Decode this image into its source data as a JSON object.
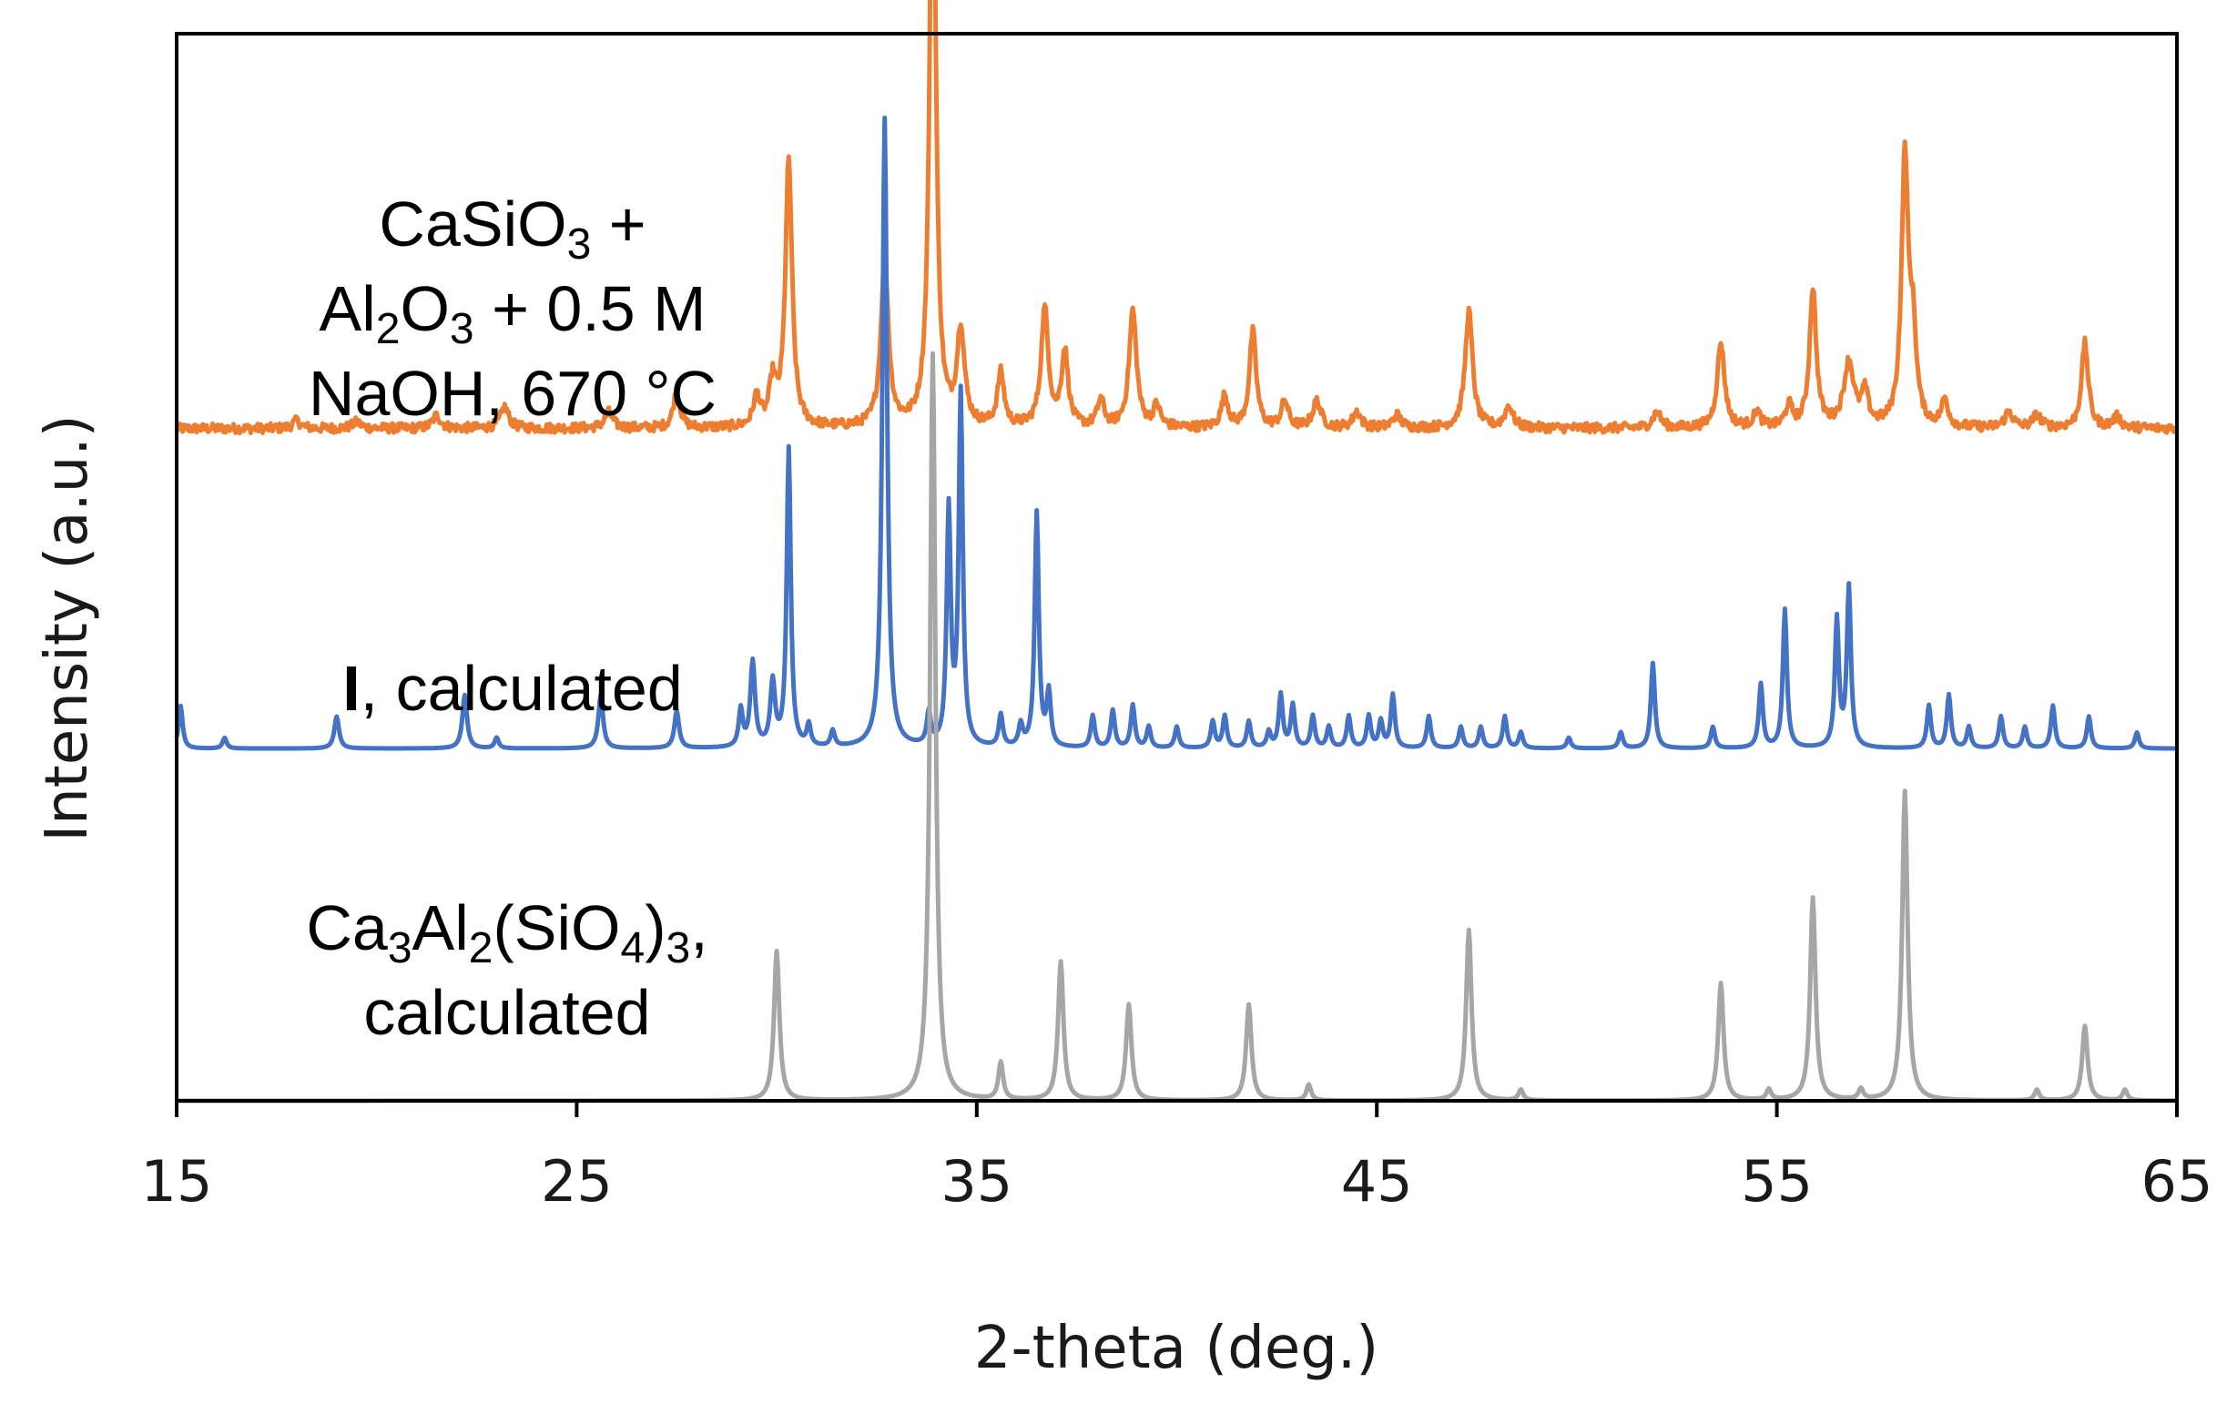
{
  "chart_data": {
    "type": "line",
    "title": "",
    "xlabel": "2-theta (deg.)",
    "ylabel": "Intensity (a.u.)",
    "xlim": [
      15,
      65
    ],
    "ylim": [
      0,
      100
    ],
    "x_ticks": [
      15,
      25,
      35,
      45,
      55,
      65
    ],
    "grid": false,
    "legend": "none (series labelled inline on left)",
    "series": [
      {
        "name": "CaSiO3 + Al2O3 + 0.5 M NaOH, 670 °C",
        "label_lines": [
          [
            {
              "t": "CaSiO"
            },
            {
              "t": "3",
              "sub": true
            },
            {
              "t": " +"
            }
          ],
          [
            {
              "t": "Al"
            },
            {
              "t": "2",
              "sub": true
            },
            {
              "t": "O"
            },
            {
              "t": "3",
              "sub": true
            },
            {
              "t": " + 0.5 M"
            }
          ],
          [
            {
              "t": "NaOH, 670 °C"
            }
          ]
        ],
        "color": "#ED7D31",
        "baseline": 63,
        "noise": 0.9,
        "peaks": [
          [
            18.0,
            0.7,
            0.12
          ],
          [
            19.5,
            0.6,
            0.12
          ],
          [
            21.5,
            1.2,
            0.12
          ],
          [
            23.2,
            2.0,
            0.12
          ],
          [
            25.8,
            1.5,
            0.12
          ],
          [
            27.5,
            3.5,
            0.1
          ],
          [
            29.5,
            2.8,
            0.1
          ],
          [
            29.9,
            4.0,
            0.1
          ],
          [
            30.3,
            25,
            0.1
          ],
          [
            32.7,
            16,
            0.11
          ],
          [
            33.9,
            61,
            0.09
          ],
          [
            34.6,
            9,
            0.11
          ],
          [
            35.6,
            5,
            0.1
          ],
          [
            36.7,
            11,
            0.11
          ],
          [
            37.2,
            7,
            0.1
          ],
          [
            38.1,
            2.5,
            0.1
          ],
          [
            38.9,
            11,
            0.11
          ],
          [
            39.5,
            2.0,
            0.1
          ],
          [
            41.2,
            3.0,
            0.1
          ],
          [
            41.9,
            9,
            0.1
          ],
          [
            42.7,
            2.5,
            0.1
          ],
          [
            43.5,
            2.5,
            0.12
          ],
          [
            44.5,
            1.5,
            0.12
          ],
          [
            45.5,
            1.2,
            0.12
          ],
          [
            47.3,
            11,
            0.11
          ],
          [
            48.3,
            2.0,
            0.12
          ],
          [
            52.0,
            1.5,
            0.12
          ],
          [
            53.6,
            8,
            0.11
          ],
          [
            54.5,
            1.5,
            0.1
          ],
          [
            55.3,
            2.0,
            0.1
          ],
          [
            55.9,
            13,
            0.1
          ],
          [
            56.8,
            6,
            0.15
          ],
          [
            57.2,
            3,
            0.1
          ],
          [
            58.2,
            25,
            0.1
          ],
          [
            58.4,
            8,
            0.1
          ],
          [
            59.2,
            2.5,
            0.1
          ],
          [
            60.8,
            1.5,
            0.12
          ],
          [
            61.5,
            1.2,
            0.12
          ],
          [
            62.7,
            8,
            0.1
          ],
          [
            63.5,
            1.0,
            0.12
          ]
        ]
      },
      {
        "name": "I, calculated",
        "label_lines": [
          [
            {
              "t": "I",
              "bold": true
            },
            {
              "t": ", calculated"
            }
          ]
        ],
        "color": "#4472C4",
        "baseline": 33,
        "noise": 0,
        "peaks": [
          [
            15.1,
            4,
            0.06
          ],
          [
            16.2,
            1.0,
            0.06
          ],
          [
            19.0,
            3.0,
            0.07
          ],
          [
            22.2,
            5,
            0.07
          ],
          [
            23.0,
            1.0,
            0.06
          ],
          [
            25.6,
            5,
            0.07
          ],
          [
            27.5,
            3.5,
            0.07
          ],
          [
            29.1,
            3.5,
            0.06
          ],
          [
            29.4,
            8,
            0.07
          ],
          [
            29.9,
            6,
            0.07
          ],
          [
            30.3,
            28,
            0.06
          ],
          [
            30.8,
            2.0,
            0.06
          ],
          [
            31.4,
            1.5,
            0.06
          ],
          [
            32.7,
            59,
            0.07
          ],
          [
            33.8,
            3.0,
            0.06
          ],
          [
            34.3,
            22,
            0.06
          ],
          [
            34.6,
            33,
            0.06
          ],
          [
            35.6,
            3.0,
            0.06
          ],
          [
            36.1,
            2.0,
            0.06
          ],
          [
            36.5,
            22,
            0.06
          ],
          [
            36.8,
            5,
            0.06
          ],
          [
            37.9,
            3.0,
            0.06
          ],
          [
            38.4,
            3.5,
            0.06
          ],
          [
            38.9,
            4.0,
            0.06
          ],
          [
            39.3,
            2.0,
            0.06
          ],
          [
            40.0,
            2.0,
            0.06
          ],
          [
            40.9,
            2.5,
            0.06
          ],
          [
            41.2,
            3.0,
            0.06
          ],
          [
            41.8,
            2.5,
            0.06
          ],
          [
            42.3,
            1.5,
            0.06
          ],
          [
            42.6,
            5,
            0.06
          ],
          [
            42.9,
            4.0,
            0.06
          ],
          [
            43.4,
            3.0,
            0.06
          ],
          [
            43.8,
            2.0,
            0.06
          ],
          [
            44.3,
            3.0,
            0.06
          ],
          [
            44.8,
            3.0,
            0.06
          ],
          [
            45.1,
            2.5,
            0.06
          ],
          [
            45.4,
            5,
            0.06
          ],
          [
            46.3,
            3.0,
            0.06
          ],
          [
            47.1,
            2.0,
            0.06
          ],
          [
            47.6,
            2.0,
            0.06
          ],
          [
            48.2,
            3.0,
            0.06
          ],
          [
            48.6,
            1.5,
            0.06
          ],
          [
            49.8,
            1.0,
            0.06
          ],
          [
            51.1,
            1.5,
            0.06
          ],
          [
            51.9,
            8,
            0.06
          ],
          [
            53.4,
            2.0,
            0.06
          ],
          [
            54.6,
            6,
            0.06
          ],
          [
            55.2,
            13,
            0.06
          ],
          [
            56.5,
            12,
            0.06
          ],
          [
            56.8,
            15,
            0.06
          ],
          [
            58.8,
            4.0,
            0.06
          ],
          [
            59.3,
            5,
            0.06
          ],
          [
            59.8,
            2.0,
            0.06
          ],
          [
            60.6,
            3.0,
            0.06
          ],
          [
            61.2,
            2.0,
            0.06
          ],
          [
            61.9,
            4.0,
            0.06
          ],
          [
            62.8,
            3.0,
            0.06
          ],
          [
            64.0,
            1.5,
            0.06
          ]
        ]
      },
      {
        "name": "Ca3Al2(SiO4)3, calculated",
        "label_lines": [
          [
            {
              "t": "Ca"
            },
            {
              "t": "3",
              "sub": true
            },
            {
              "t": "Al"
            },
            {
              "t": "2",
              "sub": true
            },
            {
              "t": "(SiO"
            },
            {
              "t": "4",
              "sub": true
            },
            {
              "t": ")"
            },
            {
              "t": "3",
              "sub": true
            },
            {
              "t": ","
            }
          ],
          [
            {
              "t": "calculated"
            }
          ]
        ],
        "color": "#A6A6A6",
        "baseline": 0,
        "noise": 0,
        "peaks": [
          [
            30.0,
            14,
            0.08
          ],
          [
            33.9,
            70,
            0.08
          ],
          [
            35.6,
            3.5,
            0.07
          ],
          [
            37.1,
            13,
            0.08
          ],
          [
            38.8,
            9,
            0.08
          ],
          [
            41.8,
            9,
            0.08
          ],
          [
            43.3,
            1.5,
            0.07
          ],
          [
            47.3,
            16,
            0.08
          ],
          [
            48.6,
            1.0,
            0.07
          ],
          [
            53.6,
            11,
            0.08
          ],
          [
            54.8,
            1.0,
            0.07
          ],
          [
            55.9,
            19,
            0.08
          ],
          [
            57.1,
            1.0,
            0.07
          ],
          [
            58.2,
            29,
            0.08
          ],
          [
            61.5,
            1.0,
            0.07
          ],
          [
            62.7,
            7,
            0.08
          ],
          [
            63.7,
            1.0,
            0.07
          ]
        ]
      }
    ]
  }
}
